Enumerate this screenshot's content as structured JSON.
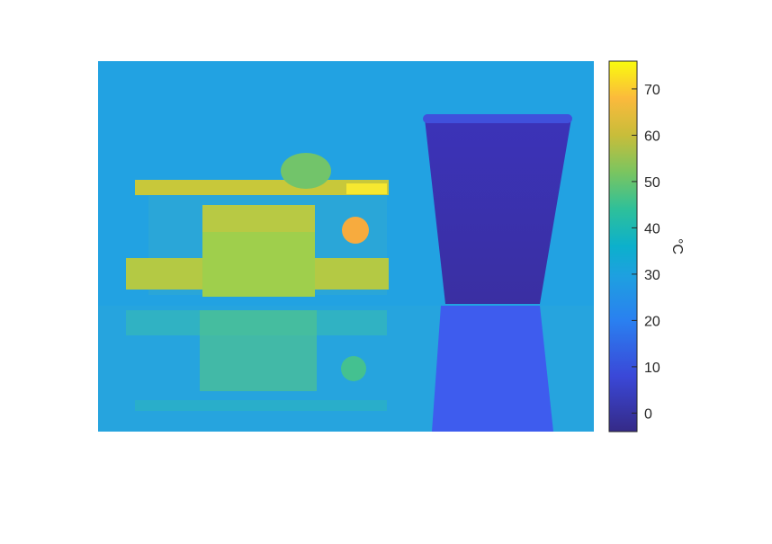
{
  "chart_data": {
    "type": "heatmap",
    "title": "",
    "colormap": "parula",
    "colorbar": {
      "label": "°C",
      "range": [
        -4,
        76
      ],
      "ticks": [
        0,
        10,
        20,
        30,
        40,
        50,
        60,
        70
      ],
      "tick_labels": [
        "0",
        "10",
        "20",
        "30",
        "40",
        "50",
        "60",
        "70"
      ],
      "location": "right"
    },
    "content": "thermal image",
    "axes_visible": false
  }
}
